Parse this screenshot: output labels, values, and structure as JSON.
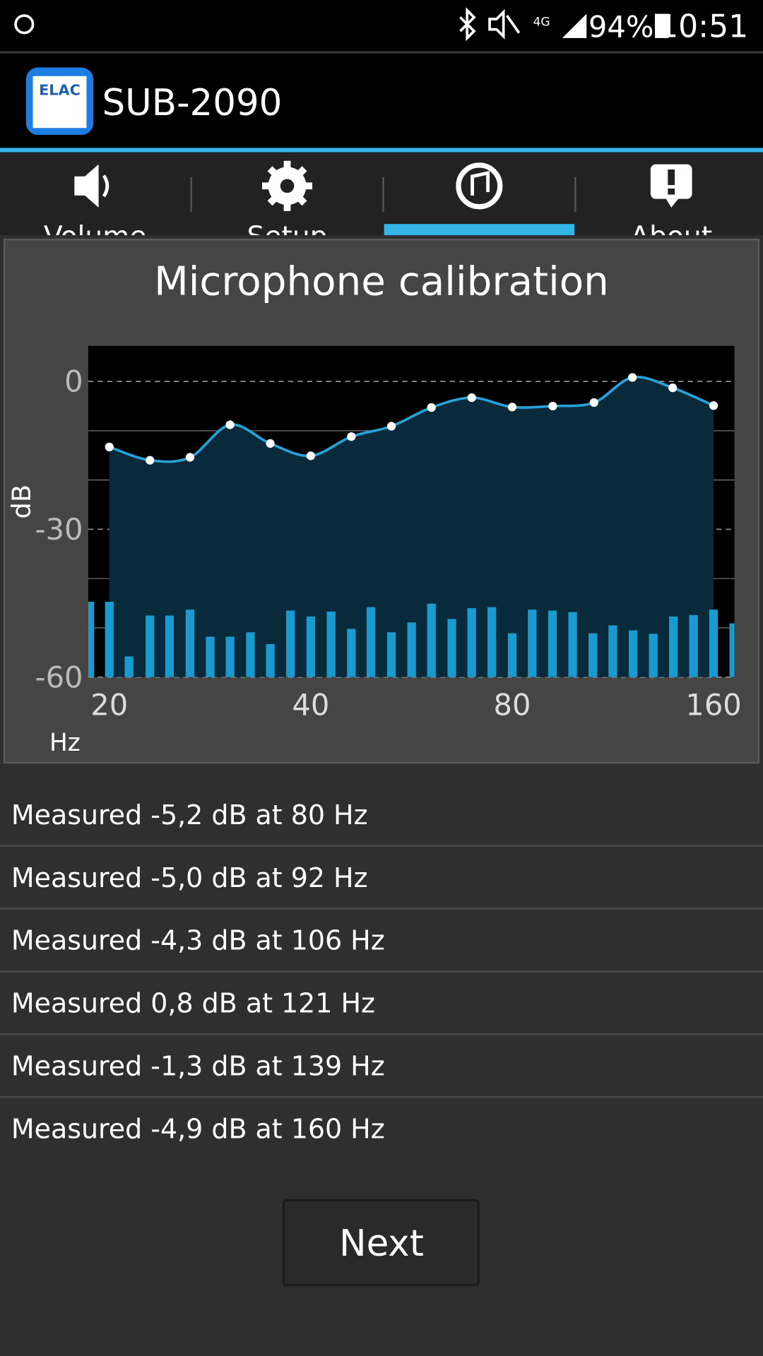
{
  "status_bar": {
    "network": "4G",
    "battery": "94%",
    "time": "10:51"
  },
  "app_bar": {
    "logo": "ELAC",
    "title": "SUB-2090"
  },
  "tabs": [
    "Volume",
    "Setup",
    "Auto EQ",
    "About"
  ],
  "chart_data": {
    "type": "line",
    "title": "Microphone calibration",
    "y_label": "dB",
    "x_label": "Hz",
    "log_x": true,
    "grid": true,
    "xlim": [
      18.6,
      171.9
    ],
    "xticks": [
      20,
      40,
      80,
      160
    ],
    "ylim": [
      -60,
      7.2
    ],
    "yticks": [
      0,
      -30,
      -60
    ],
    "minor_yticks": [
      -10,
      -20,
      -40,
      -50
    ],
    "curve": {
      "color": "#2aa0d8",
      "fill": "#082a3a",
      "x": [
        20,
        23,
        26.4,
        30.3,
        34.8,
        40,
        46,
        52.8,
        60.6,
        69.6,
        80,
        92,
        106,
        121,
        139,
        160
      ],
      "values": [
        -13.3,
        -16,
        -15.4,
        -8.8,
        -12.6,
        -15.1,
        -11.2,
        -9.1,
        -5.3,
        -3.3,
        -5.2,
        -5.0,
        -4.3,
        0.8,
        -1.3,
        -4.9
      ]
    },
    "spectrum": {
      "color": "#1a9bd0",
      "x": [
        18.7,
        20,
        21.4,
        23,
        24.6,
        26.4,
        28.3,
        30.3,
        32.5,
        34.8,
        37.3,
        40,
        42.9,
        46,
        49.2,
        52.8,
        56.6,
        60.6,
        65,
        69.6,
        74.6,
        80,
        85.7,
        91.9,
        98.5,
        105.6,
        113.1,
        121.3,
        130,
        139.3,
        149.3,
        160,
        171.5
      ],
      "values": [
        -44.7,
        -44.7,
        -55.8,
        -47.5,
        -47.5,
        -46.3,
        -51.8,
        -51.8,
        -50.9,
        -53.3,
        -46.5,
        -47.7,
        -46.7,
        -50.2,
        -45.8,
        -50.9,
        -48.9,
        -45.1,
        -48.2,
        -46.0,
        -45.8,
        -51.1,
        -46.3,
        -46.5,
        -46.8,
        -51.1,
        -49.5,
        -50.5,
        -51.2,
        -47.7,
        -47.4,
        -46.3,
        -49.1
      ]
    }
  },
  "measurements": [
    "Measured -5,2 dB at 80 Hz",
    "Measured -5,0 dB at 92 Hz",
    "Measured -4,3 dB at 106 Hz",
    "Measured 0,8 dB at 121 Hz",
    "Measured -1,3 dB at 139 Hz",
    "Measured -4,9 dB at 160 Hz"
  ],
  "button": "Next"
}
